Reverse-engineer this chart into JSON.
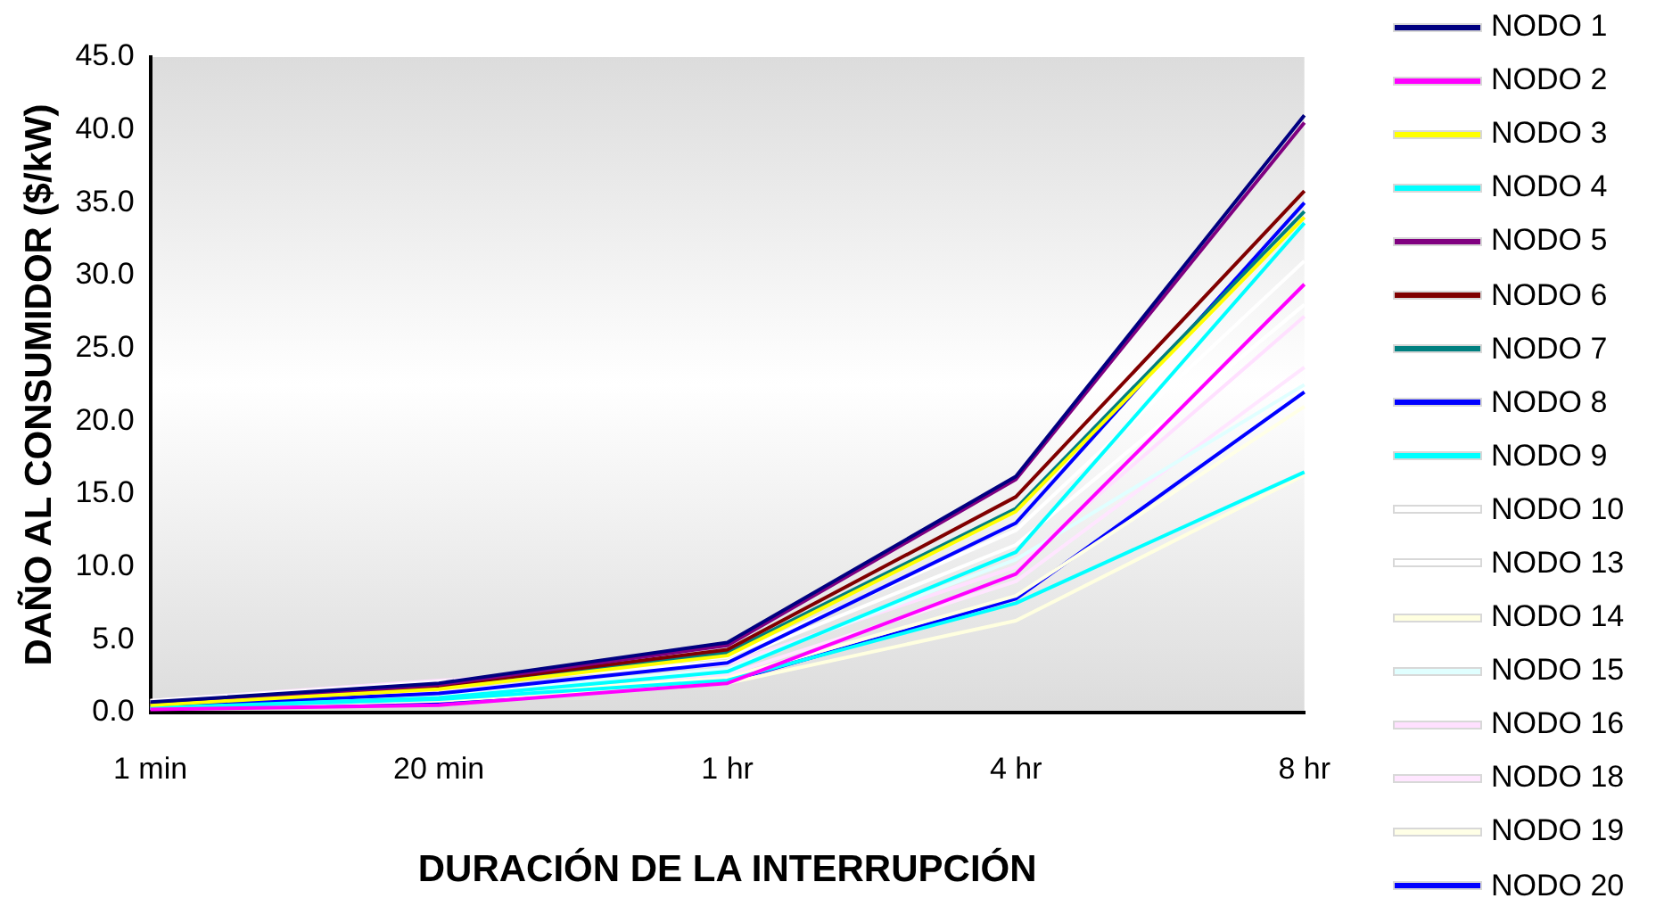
{
  "chart_data": {
    "type": "line",
    "xlabel": "DURACIÓN DE LA INTERRUPCIÓN",
    "ylabel": "DAÑO AL CONSUMIDOR ($/kW)",
    "categories": [
      "1 min",
      "20 min",
      "1 hr",
      "4 hr",
      "8 hr"
    ],
    "ylim": [
      0,
      45
    ],
    "yticks": [
      {
        "value": 0,
        "label": "0.0"
      },
      {
        "value": 5,
        "label": "5.0"
      },
      {
        "value": 10,
        "label": "10.0"
      },
      {
        "value": 15,
        "label": "15.0"
      },
      {
        "value": 20,
        "label": "20.0"
      },
      {
        "value": 25,
        "label": "25.0"
      },
      {
        "value": 30,
        "label": "30.0"
      },
      {
        "value": 35,
        "label": "35.0"
      },
      {
        "value": 40,
        "label": "40.0"
      },
      {
        "value": 45,
        "label": "45.0"
      }
    ],
    "grid": false,
    "legend": "right",
    "marker": "none",
    "line_style": "solid",
    "series": [
      {
        "name": "NODO 1",
        "color": "#000080",
        "values": [
          0.7,
          2.0,
          4.8,
          16.2,
          41.0
        ]
      },
      {
        "name": "NODO 2",
        "color": "#ff00ff",
        "values": [
          0.2,
          0.5,
          2.0,
          9.5,
          29.4
        ]
      },
      {
        "name": "NODO 3",
        "color": "#ffff00",
        "values": [
          0.5,
          1.6,
          3.9,
          13.8,
          34.0
        ]
      },
      {
        "name": "NODO 4",
        "color": "#00ffff",
        "values": [
          0.3,
          1.0,
          2.8,
          11.0,
          33.6
        ]
      },
      {
        "name": "NODO 5",
        "color": "#800080",
        "values": [
          0.6,
          1.9,
          4.6,
          16.0,
          40.5
        ]
      },
      {
        "name": "NODO 6",
        "color": "#800000",
        "values": [
          0.5,
          1.8,
          4.3,
          14.8,
          35.8
        ]
      },
      {
        "name": "NODO 7",
        "color": "#008080",
        "values": [
          0.5,
          1.7,
          4.1,
          14.0,
          34.4
        ]
      },
      {
        "name": "NODO 8",
        "color": "#0000ff",
        "values": [
          0.4,
          1.3,
          3.4,
          13.0,
          35.0
        ]
      },
      {
        "name": "NODO 9",
        "color": "#00ffff",
        "values": [
          0.3,
          0.9,
          2.2,
          7.5,
          16.5
        ]
      },
      {
        "name": "NODO 10",
        "color": "#ffffff",
        "values": [
          0.8,
          2.1,
          3.8,
          12.5,
          31.0
        ]
      },
      {
        "name": "NODO 13",
        "color": "#ffffff",
        "values": [
          0.7,
          1.9,
          3.5,
          11.5,
          28.0
        ]
      },
      {
        "name": "NODO 14",
        "color": "#ffffe0",
        "values": [
          0.3,
          0.8,
          2.0,
          6.3,
          16.3
        ]
      },
      {
        "name": "NODO 15",
        "color": "#e0ffff",
        "values": [
          0.4,
          1.2,
          3.0,
          10.5,
          22.5
        ]
      },
      {
        "name": "NODO 16",
        "color": "#ffe0ff",
        "values": [
          0.8,
          2.2,
          3.3,
          10.0,
          27.2
        ]
      },
      {
        "name": "NODO 18",
        "color": "#ffe6ff",
        "values": [
          0.6,
          1.5,
          2.6,
          9.0,
          23.7
        ]
      },
      {
        "name": "NODO 19",
        "color": "#ffffe6",
        "values": [
          0.4,
          1.0,
          2.4,
          8.0,
          21.0
        ]
      },
      {
        "name": "NODO 20",
        "color": "#0000ff",
        "values": [
          0.3,
          0.7,
          2.1,
          7.8,
          22.0
        ]
      }
    ]
  }
}
